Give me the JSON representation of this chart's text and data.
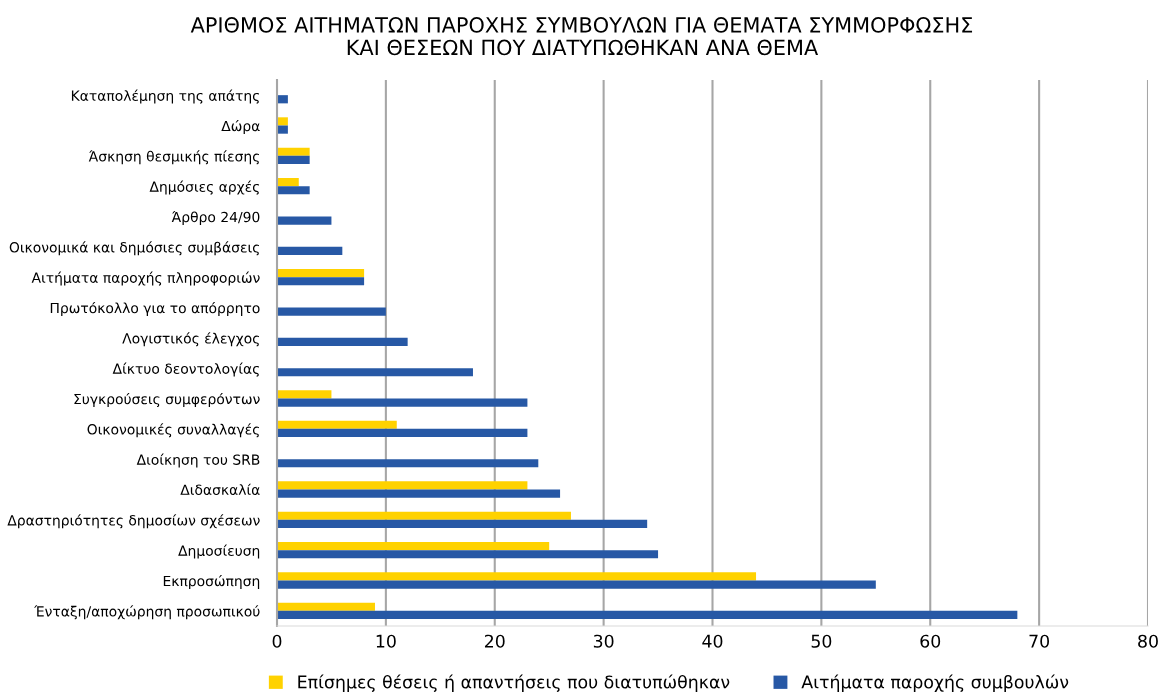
{
  "chart_data": {
    "type": "bar",
    "orientation": "horizontal",
    "title": "ΑΡΙΘΜΟΣ ΑΙΤΗΜΑΤΩΝ ΠΑΡΟΧΗΣ ΣΥΜΒΟΥΛΩΝ ΓΙΑ ΘΕΜΑΤΑ ΣΥΜΜΟΡΦΩΣΗΣ\nΚΑΙ ΘΕΣΕΩΝ ΠΟΥ ΔΙΑΤΥΠΩΘΗΚΑΝ ΑΝΑ ΘΕΜΑ",
    "categories": [
      "Καταπολέμηση της απάτης",
      "Δώρα",
      "Άσκηση θεσμικής πίεσης",
      "Δημόσιες αρχές",
      "Άρθρο 24/90",
      "Οικονομικά και δημόσιες συμβάσεις",
      "Αιτήματα παροχής πληροφοριών",
      "Πρωτόκολλο για το απόρρητο",
      "Λογιστικός έλεγχος",
      "Δίκτυο δεοντολογίας",
      "Συγκρούσεις συμφερόντων",
      "Οικονομικές συναλλαγές",
      "Διοίκηση του SRB",
      "Διδασκαλία",
      "Δραστηριότητες δημοσίων σχέσεων",
      "Δημοσίευση",
      "Εκπροσώπηση",
      "Ένταξη/αποχώρηση προσωπικού"
    ],
    "series": [
      {
        "name": "Επίσημες θέσεις ή απαντήσεις που διατυπώθηκαν",
        "color": "#ffd200",
        "values": [
          null,
          1,
          3,
          2,
          null,
          null,
          8,
          null,
          null,
          null,
          5,
          11,
          null,
          23,
          27,
          25,
          44,
          9
        ]
      },
      {
        "name": "Αιτήματα παροχής συμβουλών",
        "color": "#2758a5",
        "values": [
          1,
          1,
          3,
          3,
          5,
          6,
          8,
          10,
          12,
          18,
          23,
          23,
          24,
          26,
          34,
          35,
          55,
          68
        ]
      }
    ],
    "xlim": [
      0,
      80
    ],
    "xticks": [
      0,
      10,
      20,
      30,
      40,
      50,
      60,
      70,
      80
    ],
    "grid": "x",
    "legend": "bottom"
  }
}
